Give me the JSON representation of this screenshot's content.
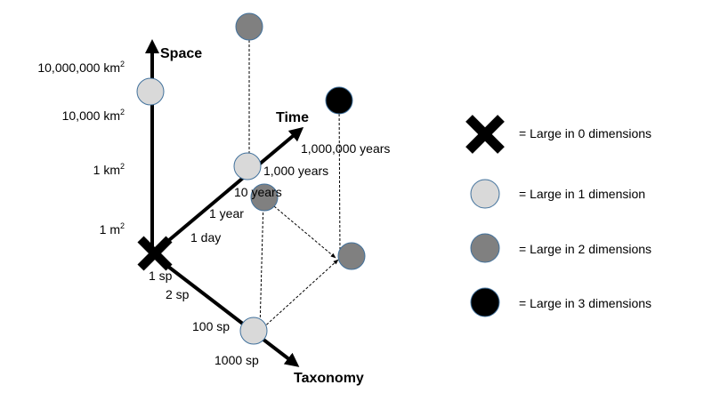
{
  "axes": {
    "space": {
      "title": "Space",
      "ticks": [
        {
          "base": "10,000,000 km",
          "sup": "2"
        },
        {
          "base": "10,000 km",
          "sup": "2"
        },
        {
          "base": "1 km",
          "sup": "2"
        },
        {
          "base": "1 m",
          "sup": "2"
        }
      ]
    },
    "time": {
      "title": "Time",
      "ticks": [
        "1,000,000 years",
        "1,000 years",
        "10 years",
        "1 year",
        "1 day"
      ]
    },
    "taxonomy": {
      "title": "Taxonomy",
      "ticks": [
        "1 sp",
        "2 sp",
        "100 sp",
        "1000 sp"
      ]
    }
  },
  "legend": [
    {
      "marker": "cross",
      "label": "= Large in 0 dimensions"
    },
    {
      "marker": "light",
      "label": "= Large in 1 dimension"
    },
    {
      "marker": "medium",
      "label": "= Large in 2 dimensions"
    },
    {
      "marker": "dark",
      "label": "= Large in 3 dimensions"
    }
  ],
  "colors": {
    "light": "#d9d9d9",
    "medium": "#808080",
    "dark": "#000000",
    "circle_stroke": "#41719c",
    "axis": "#000000"
  },
  "icons": {
    "origin": "cross-icon",
    "legend_cross": "cross-icon"
  }
}
